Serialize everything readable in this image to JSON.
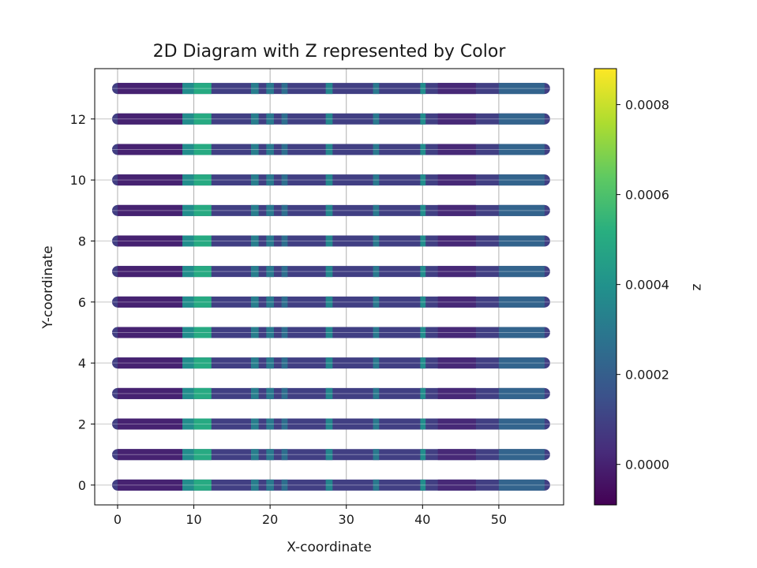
{
  "chart_data": {
    "type": "scatter",
    "title": "2D Diagram with Z represented by Color",
    "xlabel": "X-coordinate",
    "ylabel": "Y-coordinate",
    "colorbar_label": "z",
    "xlim": [
      -3,
      58.5
    ],
    "ylim": [
      -0.65,
      13.65
    ],
    "xticks": [
      0,
      10,
      20,
      30,
      40,
      50
    ],
    "yticks": [
      0,
      2,
      4,
      6,
      8,
      10,
      12
    ],
    "x_range": [
      0,
      56
    ],
    "rows": [
      0,
      1,
      2,
      3,
      4,
      5,
      6,
      7,
      8,
      9,
      10,
      11,
      12,
      13
    ],
    "grid": true,
    "colormap": "viridis",
    "colorbar_range": [
      -9e-05,
      0.00088
    ],
    "colorbar_ticks": [
      "0.0000",
      "0.0002",
      "0.0004",
      "0.0006",
      "0.0008"
    ],
    "colorbar_tick_values": [
      0,
      0.0002,
      0.0004,
      0.0006,
      0.0008
    ],
    "base_z": 9e-05,
    "z_segments": [
      {
        "x_from": 0,
        "x_to": 8.5,
        "z": 0.0
      },
      {
        "x_from": 8.5,
        "x_to": 10,
        "z": 0.00038
      },
      {
        "x_from": 10,
        "x_to": 12.3,
        "z": 0.0005
      },
      {
        "x_from": 17.5,
        "x_to": 18.5,
        "z": 0.00032
      },
      {
        "x_from": 19.5,
        "x_to": 20.5,
        "z": 0.0003
      },
      {
        "x_from": 21.5,
        "x_to": 22.3,
        "z": 0.00026
      },
      {
        "x_from": 27.3,
        "x_to": 28.2,
        "z": 0.00035
      },
      {
        "x_from": 33.5,
        "x_to": 34.3,
        "z": 0.0003
      },
      {
        "x_from": 39.7,
        "x_to": 40.4,
        "z": 0.00038
      },
      {
        "x_from": 42,
        "x_to": 47,
        "z": 2e-05
      },
      {
        "x_from": 50,
        "x_to": 56,
        "z": 0.00022
      }
    ]
  }
}
